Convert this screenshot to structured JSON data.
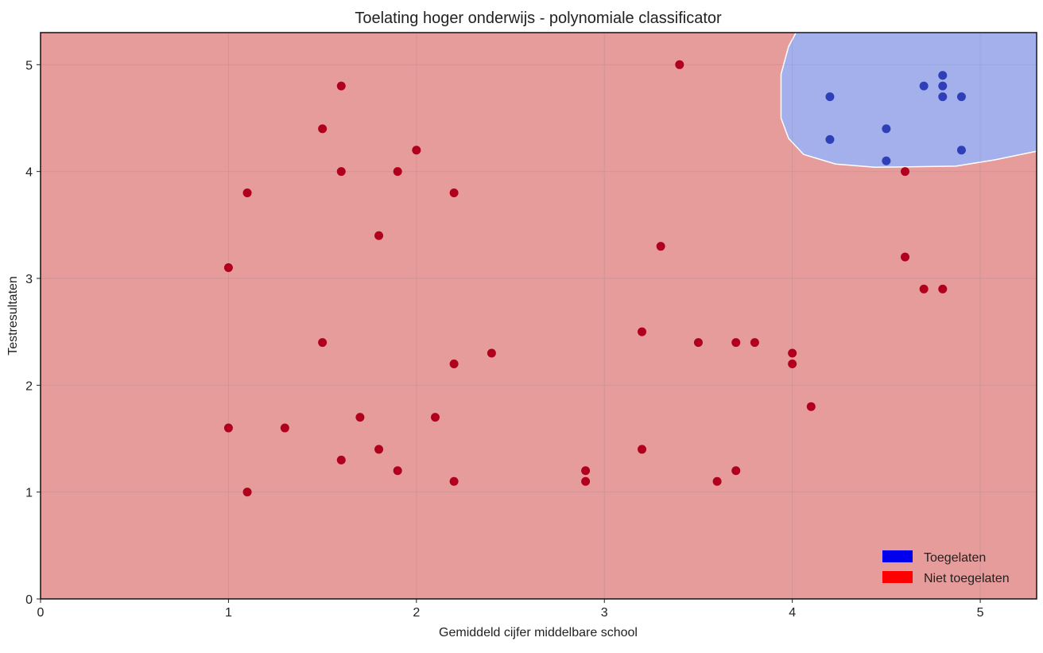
{
  "chart_data": {
    "type": "scatter",
    "title": "Toelating hoger onderwijs - polynomiale classificator",
    "xlabel": "Gemiddeld cijfer middelbare school",
    "ylabel": "Testresultaten",
    "xlim": [
      0,
      5.3
    ],
    "ylim": [
      0,
      5.3
    ],
    "xticks": [
      0,
      1,
      2,
      3,
      4,
      5
    ],
    "yticks": [
      0,
      1,
      2,
      3,
      4,
      5
    ],
    "grid": true,
    "legend_placement": "bottom-right",
    "colors": {
      "admitted_marker": "#2f3fb8",
      "rejected_marker": "#b0001e",
      "admitted_region": "#a3b0ec",
      "rejected_region": "#e59c9b",
      "legend_admitted": "#0000ee",
      "legend_rejected": "#ff0000"
    },
    "legend": [
      {
        "label": "Toegelaten",
        "color": "#0000ee"
      },
      {
        "label": "Niet toegelaten",
        "color": "#ff0000"
      }
    ],
    "series": [
      {
        "name": "Toegelaten",
        "points": [
          [
            4.2,
            4.7
          ],
          [
            4.2,
            4.3
          ],
          [
            4.5,
            4.4
          ],
          [
            4.5,
            4.1
          ],
          [
            4.7,
            4.8
          ],
          [
            4.8,
            4.9
          ],
          [
            4.8,
            4.8
          ],
          [
            4.8,
            4.7
          ],
          [
            4.9,
            4.7
          ],
          [
            4.9,
            4.2
          ]
        ]
      },
      {
        "name": "Niet toegelaten",
        "points": [
          [
            1.6,
            4.8
          ],
          [
            1.5,
            4.4
          ],
          [
            2.0,
            4.2
          ],
          [
            1.6,
            4.0
          ],
          [
            1.9,
            4.0
          ],
          [
            1.1,
            3.8
          ],
          [
            2.2,
            3.8
          ],
          [
            1.8,
            3.4
          ],
          [
            1.0,
            3.1
          ],
          [
            1.5,
            2.4
          ],
          [
            2.4,
            2.3
          ],
          [
            2.2,
            2.2
          ],
          [
            1.7,
            1.7
          ],
          [
            2.1,
            1.7
          ],
          [
            1.0,
            1.6
          ],
          [
            1.3,
            1.6
          ],
          [
            1.8,
            1.4
          ],
          [
            1.6,
            1.3
          ],
          [
            1.9,
            1.2
          ],
          [
            2.2,
            1.1
          ],
          [
            1.1,
            1.0
          ],
          [
            3.4,
            5.0
          ],
          [
            3.3,
            3.3
          ],
          [
            3.2,
            2.5
          ],
          [
            3.5,
            2.4
          ],
          [
            3.7,
            2.4
          ],
          [
            3.8,
            2.4
          ],
          [
            4.0,
            2.3
          ],
          [
            4.0,
            2.2
          ],
          [
            4.1,
            1.8
          ],
          [
            3.2,
            1.4
          ],
          [
            2.9,
            1.2
          ],
          [
            2.9,
            1.1
          ],
          [
            3.6,
            1.1
          ],
          [
            3.7,
            1.2
          ],
          [
            4.6,
            4.0
          ],
          [
            4.6,
            3.2
          ],
          [
            4.7,
            2.9
          ],
          [
            4.8,
            2.9
          ]
        ]
      }
    ],
    "decision_region_admitted": [
      [
        4.02,
        5.3
      ],
      [
        3.98,
        5.17
      ],
      [
        3.94,
        4.91
      ],
      [
        3.94,
        4.5
      ],
      [
        3.98,
        4.31
      ],
      [
        4.06,
        4.16
      ],
      [
        4.23,
        4.07
      ],
      [
        4.44,
        4.04
      ],
      [
        4.87,
        4.05
      ],
      [
        5.08,
        4.11
      ],
      [
        5.3,
        4.19
      ],
      [
        5.3,
        5.3
      ]
    ]
  }
}
